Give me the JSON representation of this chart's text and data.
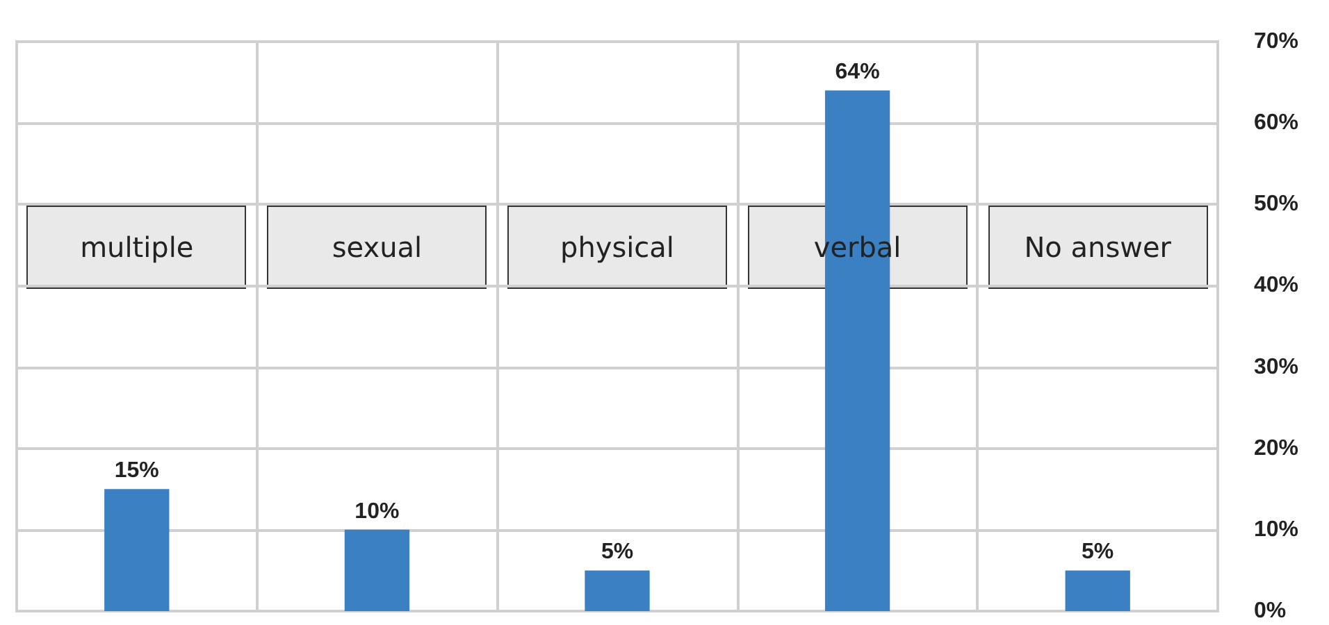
{
  "chart_data": {
    "type": "bar",
    "categories": [
      "multiple",
      "sexual",
      "physical",
      "verbal",
      "No answer"
    ],
    "values": [
      15,
      10,
      5,
      64,
      5
    ],
    "value_labels": [
      "15%",
      "10%",
      "5%",
      "64%",
      "5%"
    ],
    "color": "#3b80c3",
    "ylim": [
      0,
      70
    ],
    "yticks": [
      {
        "value": 0,
        "label": "0%"
      },
      {
        "value": 10,
        "label": "10%"
      },
      {
        "value": 20,
        "label": "20%"
      },
      {
        "value": 30,
        "label": "30%"
      },
      {
        "value": 40,
        "label": "40%"
      },
      {
        "value": 50,
        "label": "50%"
      },
      {
        "value": 60,
        "label": "60%"
      },
      {
        "value": 70,
        "label": "70%"
      }
    ],
    "grid": true
  }
}
